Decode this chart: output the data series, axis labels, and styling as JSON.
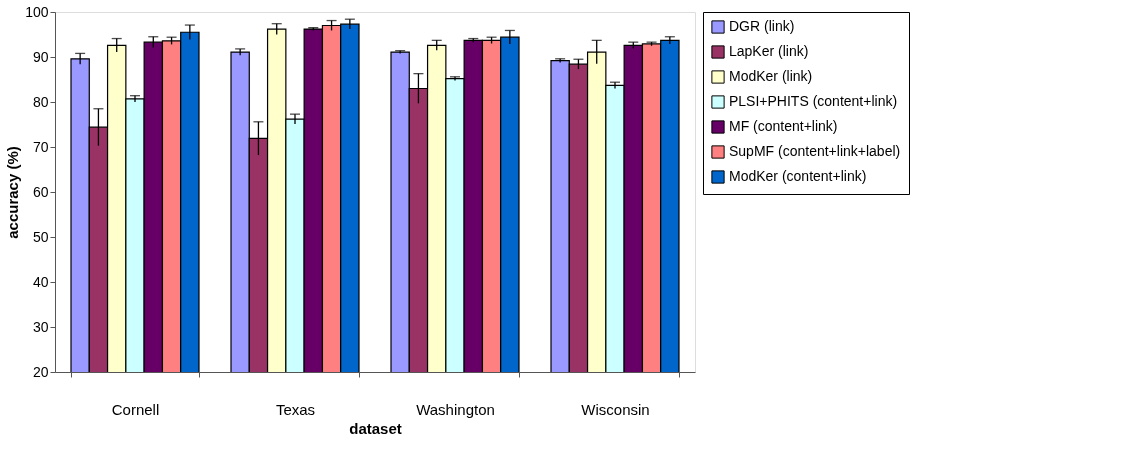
{
  "chart_data": {
    "type": "bar",
    "xlabel": "dataset",
    "ylabel": "accuracy (%)",
    "categories": [
      "Cornell",
      "Texas",
      "Washington",
      "Wisconsin"
    ],
    "ylim": [
      20,
      100
    ],
    "yticks": [
      20,
      30,
      40,
      50,
      60,
      70,
      80,
      90,
      100
    ],
    "grid": false,
    "legend": "right",
    "series": [
      {
        "name": "DGR (link)",
        "color": "#9999ff",
        "values": [
          89.6,
          91.1,
          91.1,
          89.2
        ],
        "errors": [
          1.2,
          0.7,
          0.3,
          0.4
        ]
      },
      {
        "name": "LapKer (link)",
        "color": "#993366",
        "values": [
          74.4,
          71.9,
          83.0,
          88.4
        ],
        "errors": [
          4.1,
          3.7,
          3.3,
          1.1
        ]
      },
      {
        "name": "ModKer (link)",
        "color": "#ffffcc",
        "values": [
          92.6,
          96.2,
          92.6,
          91.1
        ],
        "errors": [
          1.5,
          1.2,
          1.1,
          2.6
        ]
      },
      {
        "name": "PLSI+PHITS (content+link)",
        "color": "#ccffff",
        "values": [
          80.7,
          76.2,
          85.2,
          83.7
        ],
        "errors": [
          0.7,
          1.1,
          0.4,
          0.7
        ]
      },
      {
        "name": "MF (content+link)",
        "color": "#660066",
        "values": [
          93.3,
          96.2,
          93.7,
          92.6
        ],
        "errors": [
          1.2,
          0.3,
          0.4,
          0.7
        ]
      },
      {
        "name": "SupMF (content+link+label)",
        "color": "#ff8080",
        "values": [
          93.6,
          97.0,
          93.7,
          92.9
        ],
        "errors": [
          0.8,
          1.1,
          0.7,
          0.4
        ]
      },
      {
        "name": "ModKer (content+link)",
        "color": "#0066cc",
        "values": [
          95.5,
          97.3,
          94.4,
          93.7
        ],
        "errors": [
          1.6,
          1.1,
          1.5,
          0.8
        ]
      }
    ]
  }
}
